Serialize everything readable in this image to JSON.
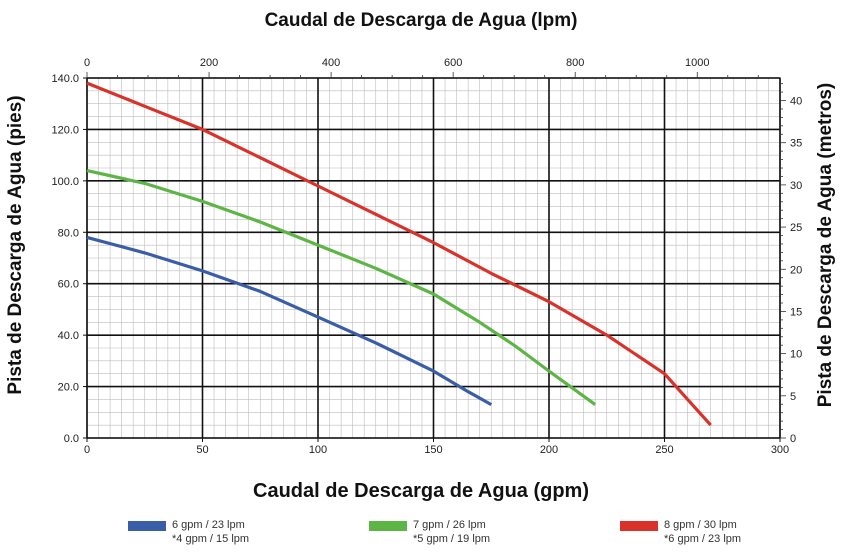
{
  "chart_data": {
    "type": "line",
    "title_top": "Caudal de Descarga de Agua (lpm)",
    "xlabel": "Caudal de Descarga de Agua (gpm)",
    "ylabel": "Pista de Descarga de Agua (pies)",
    "ylabel_right": "Pista de Descarga de Agua (metros)",
    "xlim": [
      0,
      300
    ],
    "ylim": [
      0,
      140
    ],
    "x_ticks": [
      "0",
      "50",
      "100",
      "150",
      "200",
      "250",
      "300"
    ],
    "y_ticks": [
      "0.0",
      "20.0",
      "40.0",
      "60.0",
      "80.0",
      "100.0",
      "120.0",
      "140.0"
    ],
    "top_axis": {
      "lim": [
        0,
        1135.6
      ],
      "ticks": [
        "0",
        "200",
        "400",
        "600",
        "800",
        "1000"
      ]
    },
    "right_axis": {
      "lim": [
        0,
        42.67
      ],
      "ticks": [
        "0",
        "5",
        "10",
        "15",
        "20",
        "25",
        "30",
        "35",
        "40"
      ]
    },
    "grid": true,
    "series": [
      {
        "name": "6 gpm / 23 lpm",
        "subname": "*4 gpm / 15 lpm",
        "color": "#3a5da8",
        "x": [
          0,
          25,
          50,
          75,
          100,
          125,
          150,
          165,
          175
        ],
        "y": [
          78,
          72,
          65,
          57,
          47,
          37,
          26,
          18,
          13
        ]
      },
      {
        "name": "7 gpm / 26 lpm",
        "subname": "*5 gpm / 19 lpm",
        "color": "#5cb545",
        "x": [
          0,
          25,
          50,
          75,
          100,
          125,
          150,
          170,
          185,
          200,
          220
        ],
        "y": [
          104,
          99,
          92,
          84,
          75,
          66,
          56,
          45,
          36,
          26,
          13
        ]
      },
      {
        "name": "8 gpm / 30 lpm",
        "subname": "*6 gpm / 23 lpm",
        "color": "#d8322a",
        "x": [
          0,
          25,
          50,
          75,
          100,
          125,
          150,
          175,
          200,
          225,
          250,
          260,
          270
        ],
        "y": [
          138,
          129,
          120,
          109,
          98,
          87,
          76,
          64,
          53,
          40,
          25,
          15,
          5
        ]
      }
    ]
  }
}
